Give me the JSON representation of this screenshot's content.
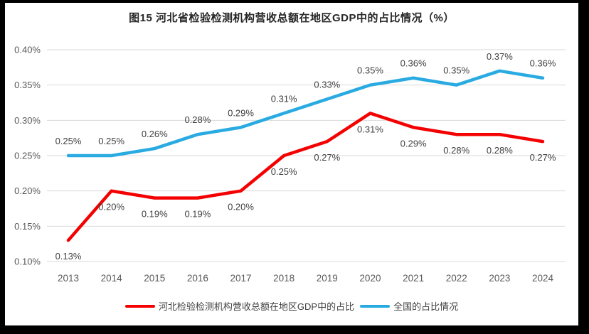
{
  "frame": {
    "border_color": "#000000",
    "card_background": "#ffffff"
  },
  "colors": {
    "grid": "#d9d9d9",
    "axis_text": "#595959",
    "data_label_text": "#3f3f3f",
    "title_text": "#262626"
  },
  "chart_data": {
    "type": "line",
    "title": "图15 河北省检验检测机构营收总额在地区GDP中的占比情况（%）",
    "categories": [
      "2013",
      "2014",
      "2015",
      "2016",
      "2017",
      "2018",
      "2019",
      "2020",
      "2021",
      "2022",
      "2023",
      "2024"
    ],
    "series": [
      {
        "name": "河北检验检测机构营收总额在地区GDP中的占比",
        "color": "#f40000",
        "values": [
          0.13,
          0.2,
          0.19,
          0.19,
          0.2,
          0.25,
          0.27,
          0.31,
          0.29,
          0.28,
          0.28,
          0.27
        ],
        "data_label_position": "below"
      },
      {
        "name": "全国的占比情况",
        "color": "#29abe2",
        "values": [
          0.25,
          0.25,
          0.26,
          0.28,
          0.29,
          0.31,
          0.33,
          0.35,
          0.36,
          0.35,
          0.37,
          0.36
        ],
        "data_label_position": "above"
      }
    ],
    "xlabel": "",
    "ylabel": "",
    "ylim": [
      0.1,
      0.4
    ],
    "ytick_labels": [
      "0.10%",
      "0.15%",
      "0.20%",
      "0.25%",
      "0.30%",
      "0.35%",
      "0.40%"
    ],
    "grid": true,
    "legend_position": "bottom",
    "data_label_format": "0.00%"
  }
}
